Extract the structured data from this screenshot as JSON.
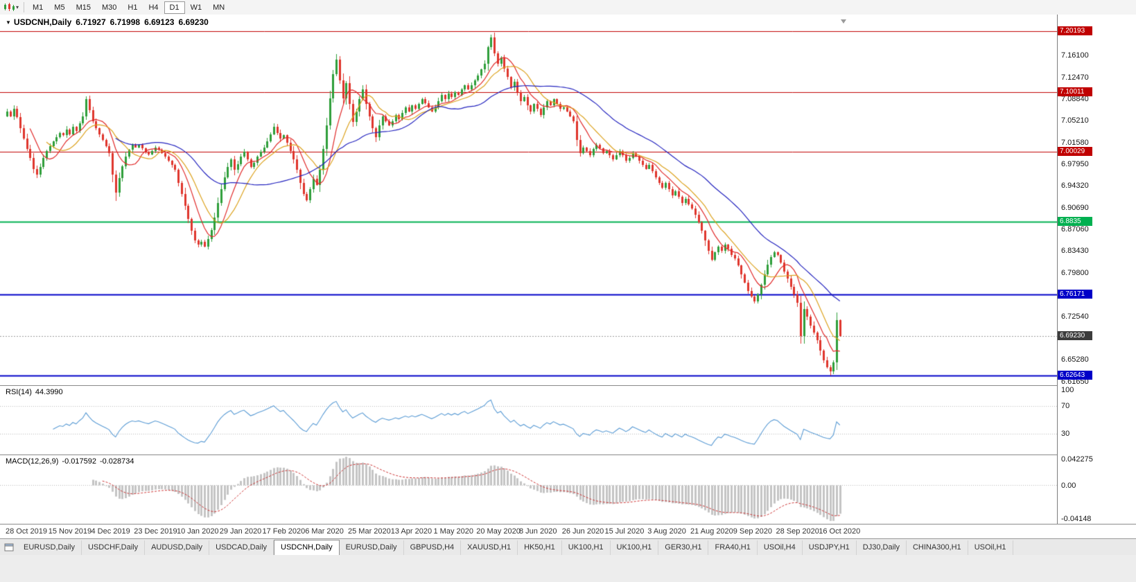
{
  "toolbar": {
    "timeframes": [
      "M1",
      "M5",
      "M15",
      "M30",
      "H1",
      "H4",
      "D1",
      "W1",
      "MN"
    ],
    "active_timeframe": "D1"
  },
  "chart": {
    "title": "USDCNH,Daily",
    "open": "6.71927",
    "high": "6.71998",
    "low": "6.69123",
    "close": "6.69230"
  },
  "rsi": {
    "name": "RSI(14)",
    "value": "44.3990",
    "levels": [
      "100",
      "70",
      "30"
    ]
  },
  "macd": {
    "name": "MACD(12,26,9)",
    "main": "-0.017592",
    "signal": "-0.028734",
    "axis": [
      "0.042275",
      "0.00",
      "-0.04148"
    ]
  },
  "tabs": {
    "active_index": 4,
    "items": [
      "EURUSD,Daily",
      "USDCHF,Daily",
      "AUDUSD,Daily",
      "USDCAD,Daily",
      "USDCNH,Daily",
      "EURUSD,Daily",
      "GBPUSD,H4",
      "XAUUSD,H1",
      "HK50,H1",
      "UK100,H1",
      "UK100,H1",
      "GER30,H1",
      "FRA40,H1",
      "USOil,H4",
      "USDJPY,H1",
      "DJ30,Daily",
      "CHINA300,H1",
      "USOil,H1"
    ]
  },
  "chart_data": {
    "type": "candlestick",
    "symbol": "USDCNH",
    "timeframe": "Daily",
    "x_labels": [
      "28 Oct 2019",
      "15 Nov 2019",
      "4 Dec 2019",
      "23 Dec 2019",
      "10 Jan 2020",
      "29 Jan 2020",
      "17 Feb 2020",
      "6 Mar 2020",
      "25 Mar 2020",
      "13 Apr 2020",
      "1 May 2020",
      "20 May 2020",
      "8 Jun 2020",
      "26 Jun 2020",
      "15 Jul 2020",
      "3 Aug 2020",
      "21 Aug 2020",
      "9 Sep 2020",
      "28 Sep 2020",
      "16 Oct 2020"
    ],
    "candles_per_label": 13,
    "first_open": 7.06,
    "closes": [
      7.068,
      7.06,
      7.072,
      7.058,
      7.04,
      7.022,
      7.005,
      6.99,
      6.972,
      6.962,
      6.975,
      6.99,
      7.002,
      7.01,
      7.018,
      7.025,
      7.032,
      7.028,
      7.038,
      7.03,
      7.042,
      7.035,
      7.048,
      7.06,
      7.088,
      7.07,
      7.052,
      7.04,
      7.03,
      7.02,
      7.01,
      6.998,
      6.962,
      6.932,
      6.956,
      6.976,
      6.992,
      7.004,
      7.012,
      7.008,
      7.012,
      7.006,
      7.0,
      6.996,
      7.002,
      7.008,
      7.004,
      6.998,
      6.992,
      6.985,
      6.978,
      6.97,
      6.948,
      6.93,
      6.91,
      6.888,
      6.868,
      6.852,
      6.845,
      6.85,
      6.842,
      6.855,
      6.87,
      6.89,
      6.915,
      6.938,
      6.958,
      6.975,
      6.988,
      6.97,
      6.98,
      6.992,
      7.0,
      6.988,
      6.975,
      6.982,
      6.992,
      7.0,
      7.008,
      7.018,
      7.03,
      7.042,
      7.032,
      7.022,
      7.028,
      7.015,
      7.002,
      6.988,
      6.97,
      6.948,
      6.93,
      6.92,
      6.938,
      6.955,
      6.945,
      6.97,
      7.005,
      7.045,
      7.09,
      7.13,
      7.155,
      7.12,
      7.09,
      7.115,
      7.08,
      7.05,
      7.068,
      7.088,
      7.105,
      7.08,
      7.06,
      7.04,
      7.025,
      7.045,
      7.06,
      7.052,
      7.045,
      7.052,
      7.062,
      7.055,
      7.065,
      7.075,
      7.068,
      7.078,
      7.072,
      7.08,
      7.088,
      7.082,
      7.075,
      7.068,
      7.075,
      7.085,
      7.095,
      7.088,
      7.098,
      7.092,
      7.1,
      7.095,
      7.105,
      7.112,
      7.105,
      7.112,
      7.12,
      7.128,
      7.138,
      7.148,
      7.175,
      7.192,
      7.165,
      7.148,
      7.158,
      7.14,
      7.125,
      7.108,
      7.118,
      7.1,
      7.085,
      7.092,
      7.078,
      7.068,
      7.08,
      7.072,
      7.062,
      7.075,
      7.085,
      7.078,
      7.088,
      7.08,
      7.072,
      7.075,
      7.068,
      7.06,
      7.052,
      7.02,
      6.998,
      7.008,
      7.002,
      6.995,
      7.005,
      7.012,
      7.006,
      6.998,
      7.002,
      6.995,
      6.988,
      6.995,
      7.002,
      6.995,
      6.985,
      6.99,
      6.998,
      6.992,
      6.985,
      6.978,
      6.972,
      6.978,
      6.968,
      6.958,
      6.948,
      6.94,
      6.948,
      6.938,
      6.928,
      6.935,
      6.925,
      6.915,
      6.922,
      6.912,
      6.905,
      6.895,
      6.882,
      6.868,
      6.852,
      6.835,
      6.82,
      6.832,
      6.842,
      6.835,
      6.845,
      6.838,
      6.828,
      6.822,
      6.81,
      6.796,
      6.782,
      6.768,
      6.758,
      6.75,
      6.762,
      6.778,
      6.795,
      6.812,
      6.825,
      6.832,
      6.828,
      6.815,
      6.8,
      6.788,
      6.775,
      6.762,
      6.748,
      6.692,
      6.738,
      6.725,
      6.71,
      6.698,
      6.685,
      6.668,
      6.652,
      6.64,
      6.633,
      6.648,
      6.71927,
      6.6923
    ],
    "last_ohlc": {
      "open": 6.71927,
      "high": 6.71998,
      "low": 6.69123,
      "close": 6.6923
    },
    "extremes": [
      {
        "i": 33,
        "low": 6.918
      },
      {
        "i": 100,
        "high": 7.164
      },
      {
        "i": 147,
        "high": 7.1965
      },
      {
        "i": 250,
        "low": 6.6262
      }
    ],
    "price_axis": {
      "min": 6.6102,
      "max": 7.2298,
      "ticks": [
        "7.16100",
        "7.12470",
        "7.08840",
        "7.05210",
        "7.01580",
        "6.97950",
        "6.94320",
        "6.90690",
        "6.87060",
        "6.83430",
        "6.79800",
        "6.76170",
        "6.72540",
        "6.68910",
        "6.65280",
        "6.61650"
      ]
    },
    "hlines": [
      {
        "price": 7.20193,
        "label": "7.20193",
        "color": "#C00000",
        "width": 1
      },
      {
        "price": 7.10011,
        "label": "7.10011",
        "color": "#C00000",
        "width": 1
      },
      {
        "price": 7.00029,
        "label": "7.00029",
        "color": "#C00000",
        "width": 1
      },
      {
        "price": 6.8835,
        "label": "6.8835",
        "color": "#00B050",
        "width": 2
      },
      {
        "price": 6.76171,
        "label": "6.76171",
        "color": "#0000C8",
        "width": 2
      },
      {
        "price": 6.62643,
        "label": "6.62643",
        "color": "#0000C8",
        "width": 2
      }
    ],
    "current_price": {
      "price": 6.6923,
      "label": "6.69230",
      "color": "#3C3C3C"
    },
    "ma_periods": [
      8,
      13,
      34
    ],
    "rsi_period": 14,
    "macd_params": [
      12,
      26,
      9
    ],
    "colors": {
      "up": "#2E9E3A",
      "down": "#DF352C",
      "ma_fast": "#E02828",
      "ma_mid": "#DCA21E",
      "ma_slow": "#2222BE",
      "rsi": "#5A9BD4",
      "macd_hist": "#C4C4C4",
      "macd_signal": "#CC3333",
      "current_line": "#9A9A9A"
    }
  }
}
